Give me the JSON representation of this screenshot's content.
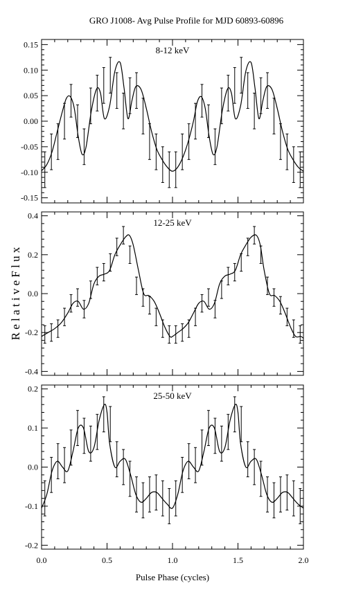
{
  "figure": {
    "title": "GRO J1008- Avg Pulse Profile for MJD 60893-60896",
    "xlabel": "Pulse Phase (cycles)",
    "ylabel": "R e l a t i v e   F l u x"
  },
  "chart_data": [
    {
      "type": "line",
      "title": "8-12 keV",
      "xlabel": "Pulse Phase (cycles)",
      "ylabel": "Relative Flux",
      "xlim": [
        0.0,
        2.0
      ],
      "ylim": [
        -0.16,
        0.16
      ],
      "xticks": [
        0.0,
        0.5,
        1.0,
        1.5,
        2.0
      ],
      "xtick_labels": [
        "",
        "",
        "",
        "",
        ""
      ],
      "yticks": [
        -0.15,
        -0.1,
        -0.05,
        0.0,
        0.05,
        0.1,
        0.15
      ],
      "ytick_labels": [
        "-0.15",
        "-0.10",
        "-0.05",
        "0.00",
        "0.05",
        "0.10",
        "0.15"
      ],
      "curve": {
        "x": [
          0.0,
          0.04,
          0.08,
          0.12,
          0.16,
          0.19,
          0.22,
          0.25,
          0.28,
          0.31,
          0.34,
          0.38,
          0.42,
          0.45,
          0.48,
          0.52,
          0.56,
          0.6,
          0.63,
          0.66,
          0.69,
          0.72,
          0.76,
          0.8,
          0.84,
          0.88,
          0.92,
          0.96,
          1.0,
          1.04,
          1.08,
          1.12,
          1.16,
          1.19,
          1.22,
          1.25,
          1.28,
          1.31,
          1.34,
          1.38,
          1.42,
          1.45,
          1.48,
          1.52,
          1.56,
          1.6,
          1.63,
          1.66,
          1.69,
          1.72,
          1.76,
          1.8,
          1.84,
          1.88,
          1.92,
          1.96,
          2.0
        ],
        "y": [
          -0.097,
          -0.085,
          -0.06,
          -0.02,
          0.02,
          0.045,
          0.048,
          0.025,
          -0.03,
          -0.065,
          -0.05,
          0.02,
          0.063,
          0.055,
          0.005,
          0.03,
          0.098,
          0.115,
          0.065,
          0.005,
          0.04,
          0.068,
          0.062,
          0.025,
          -0.02,
          -0.055,
          -0.075,
          -0.09,
          -0.098,
          -0.09,
          -0.07,
          -0.04,
          0.0,
          0.038,
          0.048,
          0.025,
          -0.03,
          -0.065,
          -0.05,
          0.02,
          0.063,
          0.055,
          0.005,
          0.03,
          0.098,
          0.115,
          0.065,
          0.005,
          0.04,
          0.068,
          0.062,
          0.025,
          -0.02,
          -0.055,
          -0.075,
          -0.09,
          -0.098
        ]
      },
      "errorbars": {
        "x": [
          0.025,
          0.075,
          0.125,
          0.175,
          0.225,
          0.275,
          0.325,
          0.375,
          0.425,
          0.475,
          0.525,
          0.575,
          0.625,
          0.675,
          0.725,
          0.775,
          0.825,
          0.875,
          0.925,
          0.975,
          1.025,
          1.075,
          1.125,
          1.175,
          1.225,
          1.275,
          1.325,
          1.375,
          1.425,
          1.475,
          1.525,
          1.575,
          1.625,
          1.675,
          1.725,
          1.775,
          1.825,
          1.875,
          1.925,
          1.975
        ],
        "y": [
          -0.095,
          -0.06,
          -0.04,
          0.0,
          0.04,
          0.0,
          -0.05,
          0.03,
          0.055,
          0.07,
          0.09,
          0.06,
          0.02,
          0.05,
          0.06,
          0.01,
          -0.04,
          -0.06,
          -0.085,
          -0.095,
          -0.095,
          -0.06,
          -0.04,
          0.0,
          0.04,
          0.0,
          -0.05,
          0.03,
          0.055,
          0.07,
          0.09,
          0.06,
          0.02,
          0.05,
          0.06,
          0.01,
          -0.04,
          -0.06,
          -0.085,
          -0.095
        ],
        "err": [
          0.035,
          0.035,
          0.035,
          0.035,
          0.032,
          0.032,
          0.035,
          0.035,
          0.035,
          0.035,
          0.035,
          0.035,
          0.035,
          0.035,
          0.035,
          0.035,
          0.035,
          0.035,
          0.035,
          0.035,
          0.035,
          0.035,
          0.035,
          0.035,
          0.032,
          0.032,
          0.035,
          0.035,
          0.035,
          0.035,
          0.035,
          0.035,
          0.035,
          0.035,
          0.035,
          0.035,
          0.035,
          0.035,
          0.035,
          0.035
        ]
      }
    },
    {
      "type": "line",
      "title": "12-25 keV",
      "xlabel": "Pulse Phase (cycles)",
      "ylabel": "Relative Flux",
      "xlim": [
        0.0,
        2.0
      ],
      "ylim": [
        -0.42,
        0.42
      ],
      "xticks": [
        0.0,
        0.5,
        1.0,
        1.5,
        2.0
      ],
      "xtick_labels": [
        "",
        "",
        "",
        "",
        ""
      ],
      "yticks": [
        -0.4,
        -0.2,
        0.0,
        0.2,
        0.4
      ],
      "ytick_labels": [
        "-0.4",
        "-0.2",
        "0.0",
        "0.2",
        "0.4"
      ],
      "curve": {
        "x": [
          0.0,
          0.05,
          0.1,
          0.15,
          0.2,
          0.24,
          0.28,
          0.32,
          0.36,
          0.4,
          0.44,
          0.48,
          0.52,
          0.56,
          0.6,
          0.64,
          0.67,
          0.7,
          0.74,
          0.78,
          0.82,
          0.86,
          0.9,
          0.94,
          0.98,
          1.0,
          1.04,
          1.08,
          1.12,
          1.16,
          1.2,
          1.24,
          1.28,
          1.32,
          1.36,
          1.4,
          1.44,
          1.48,
          1.52,
          1.56,
          1.6,
          1.64,
          1.67,
          1.7,
          1.74,
          1.78,
          1.82,
          1.86,
          1.9,
          1.94,
          1.98,
          2.0
        ],
        "y": [
          -0.22,
          -0.2,
          -0.18,
          -0.15,
          -0.1,
          -0.05,
          -0.04,
          -0.08,
          -0.05,
          0.05,
          0.09,
          0.1,
          0.12,
          0.2,
          0.25,
          0.29,
          0.3,
          0.25,
          0.12,
          0.0,
          -0.01,
          -0.04,
          -0.1,
          -0.17,
          -0.22,
          -0.22,
          -0.2,
          -0.18,
          -0.15,
          -0.1,
          -0.05,
          -0.04,
          -0.08,
          -0.05,
          0.05,
          0.09,
          0.1,
          0.12,
          0.2,
          0.25,
          0.29,
          0.3,
          0.25,
          0.12,
          0.0,
          -0.01,
          -0.04,
          -0.1,
          -0.17,
          -0.22,
          -0.22,
          -0.23
        ]
      },
      "errorbars": {
        "x": [
          0.025,
          0.075,
          0.125,
          0.175,
          0.225,
          0.275,
          0.325,
          0.375,
          0.425,
          0.475,
          0.525,
          0.575,
          0.625,
          0.675,
          0.725,
          0.775,
          0.825,
          0.875,
          0.925,
          0.975,
          1.025,
          1.075,
          1.125,
          1.175,
          1.225,
          1.275,
          1.325,
          1.375,
          1.425,
          1.475,
          1.525,
          1.575,
          1.625,
          1.675,
          1.725,
          1.775,
          1.825,
          1.875,
          1.925,
          1.975
        ],
        "y": [
          -0.21,
          -0.2,
          -0.18,
          -0.12,
          -0.05,
          -0.02,
          -0.08,
          0.02,
          0.09,
          0.11,
          0.16,
          0.24,
          0.3,
          0.2,
          0.04,
          -0.02,
          -0.06,
          -0.12,
          -0.18,
          -0.21,
          -0.21,
          -0.2,
          -0.18,
          -0.12,
          -0.05,
          -0.02,
          -0.08,
          0.02,
          0.09,
          0.11,
          0.16,
          0.24,
          0.3,
          0.2,
          0.04,
          -0.02,
          -0.06,
          -0.12,
          -0.18,
          -0.21
        ],
        "err": [
          0.045,
          0.045,
          0.045,
          0.045,
          0.045,
          0.045,
          0.045,
          0.045,
          0.045,
          0.045,
          0.045,
          0.045,
          0.045,
          0.045,
          0.045,
          0.045,
          0.045,
          0.045,
          0.045,
          0.045,
          0.045,
          0.045,
          0.045,
          0.045,
          0.045,
          0.045,
          0.045,
          0.045,
          0.045,
          0.045,
          0.045,
          0.045,
          0.045,
          0.045,
          0.045,
          0.045,
          0.045,
          0.045,
          0.045,
          0.045
        ]
      }
    },
    {
      "type": "line",
      "title": "25-50 keV",
      "xlabel": "Pulse Phase (cycles)",
      "ylabel": "Relative Flux",
      "xlim": [
        0.0,
        2.0
      ],
      "ylim": [
        -0.21,
        0.21
      ],
      "xticks": [
        0.0,
        0.5,
        1.0,
        1.5,
        2.0
      ],
      "xtick_labels": [
        "0.0",
        "0.5",
        "1.0",
        "1.5",
        "2.0"
      ],
      "yticks": [
        -0.2,
        -0.1,
        0.0,
        0.1,
        0.2
      ],
      "ytick_labels": [
        "-0.2",
        "-0.1",
        "0.0",
        "0.1",
        "0.2"
      ],
      "curve": {
        "x": [
          0.0,
          0.04,
          0.08,
          0.12,
          0.16,
          0.2,
          0.24,
          0.28,
          0.32,
          0.36,
          0.4,
          0.44,
          0.48,
          0.5,
          0.52,
          0.56,
          0.6,
          0.64,
          0.68,
          0.72,
          0.76,
          0.8,
          0.84,
          0.88,
          0.92,
          0.96,
          1.0,
          1.04,
          1.08,
          1.12,
          1.16,
          1.2,
          1.24,
          1.28,
          1.32,
          1.36,
          1.4,
          1.44,
          1.48,
          1.5,
          1.52,
          1.56,
          1.6,
          1.64,
          1.68,
          1.72,
          1.76,
          1.8,
          1.84,
          1.88,
          1.92,
          1.96,
          2.0
        ],
        "y": [
          -0.105,
          -0.07,
          -0.01,
          0.015,
          0.0,
          -0.01,
          0.04,
          0.1,
          0.1,
          0.04,
          0.05,
          0.12,
          0.16,
          0.14,
          0.06,
          0.0,
          0.015,
          0.02,
          -0.02,
          -0.07,
          -0.09,
          -0.08,
          -0.065,
          -0.065,
          -0.08,
          -0.095,
          -0.105,
          -0.07,
          -0.01,
          0.015,
          0.0,
          -0.01,
          0.04,
          0.1,
          0.1,
          0.04,
          0.05,
          0.12,
          0.16,
          0.14,
          0.06,
          0.0,
          0.015,
          0.02,
          -0.02,
          -0.07,
          -0.09,
          -0.08,
          -0.065,
          -0.065,
          -0.08,
          -0.095,
          -0.105
        ]
      },
      "errorbars": {
        "x": [
          0.025,
          0.075,
          0.125,
          0.175,
          0.225,
          0.275,
          0.325,
          0.375,
          0.425,
          0.475,
          0.525,
          0.575,
          0.625,
          0.675,
          0.725,
          0.775,
          0.825,
          0.875,
          0.925,
          0.975,
          1.025,
          1.075,
          1.125,
          1.175,
          1.225,
          1.275,
          1.325,
          1.375,
          1.425,
          1.475,
          1.525,
          1.575,
          1.625,
          1.675,
          1.725,
          1.775,
          1.825,
          1.875,
          1.925,
          1.975
        ],
        "y": [
          -0.08,
          -0.02,
          0.015,
          0.005,
          0.05,
          0.1,
          0.08,
          0.06,
          0.09,
          0.135,
          0.11,
          0.02,
          0.0,
          -0.03,
          -0.07,
          -0.085,
          -0.07,
          -0.065,
          -0.08,
          -0.1,
          -0.08,
          -0.02,
          0.015,
          0.005,
          0.05,
          0.1,
          0.08,
          0.06,
          0.09,
          0.135,
          0.11,
          0.02,
          0.0,
          -0.03,
          -0.07,
          -0.085,
          -0.07,
          -0.065,
          -0.08,
          -0.1
        ],
        "err": [
          0.045,
          0.045,
          0.045,
          0.045,
          0.045,
          0.045,
          0.045,
          0.045,
          0.045,
          0.045,
          0.045,
          0.045,
          0.045,
          0.045,
          0.045,
          0.045,
          0.045,
          0.045,
          0.045,
          0.045,
          0.045,
          0.045,
          0.045,
          0.045,
          0.045,
          0.045,
          0.045,
          0.045,
          0.045,
          0.045,
          0.045,
          0.045,
          0.045,
          0.045,
          0.045,
          0.045,
          0.045,
          0.045,
          0.045,
          0.045
        ]
      }
    }
  ]
}
